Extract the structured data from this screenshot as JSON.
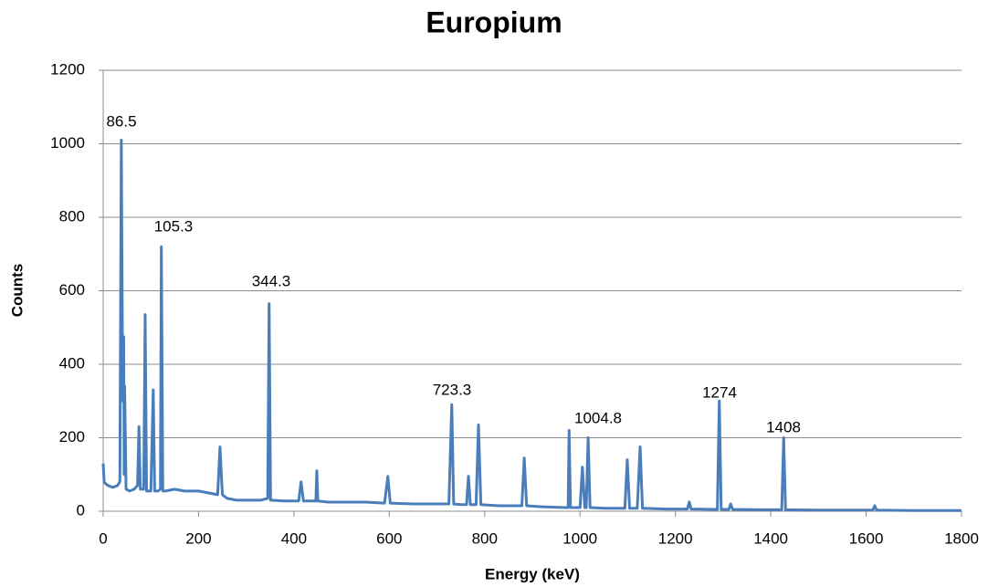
{
  "chart_data": {
    "type": "line",
    "title": "Europium",
    "x_label": "Energy (keV)",
    "y_label": "Counts",
    "xlim": [
      0,
      1800
    ],
    "xticks": [
      0,
      200,
      400,
      600,
      800,
      1000,
      1200,
      1400,
      1600,
      1800
    ],
    "ylim": [
      0,
      1200
    ],
    "yticks": [
      0,
      200,
      400,
      600,
      800,
      1000,
      1200
    ],
    "grid": true,
    "annotations": [
      "86.5",
      "105.3",
      "344.3",
      "723.3",
      "1004.8",
      "1274",
      "1408"
    ],
    "x": [
      0,
      2,
      5,
      10,
      20,
      30,
      35,
      38,
      41,
      43,
      44,
      45,
      48,
      55,
      65,
      72,
      75,
      78,
      85,
      88,
      91,
      100,
      105,
      108,
      115,
      120,
      122,
      125,
      130,
      150,
      170,
      200,
      220,
      240,
      245,
      247,
      250,
      260,
      280,
      300,
      330,
      345,
      348,
      351,
      380,
      410,
      415,
      420,
      440,
      446,
      448,
      450,
      470,
      500,
      550,
      590,
      597,
      602,
      650,
      700,
      725,
      731,
      735,
      750,
      762,
      766,
      770,
      782,
      787,
      792,
      830,
      870,
      878,
      883,
      888,
      920,
      970,
      975,
      977,
      980,
      1000,
      1005,
      1010,
      1013,
      1017,
      1021,
      1050,
      1094,
      1099,
      1104,
      1120,
      1126,
      1131,
      1180,
      1225,
      1229,
      1233,
      1280,
      1288,
      1292,
      1296,
      1312,
      1316,
      1320,
      1380,
      1423,
      1427,
      1431,
      1500,
      1614,
      1618,
      1622,
      1700,
      1800
    ],
    "series": [
      {
        "name": "Counts",
        "color": "#4a7ebb",
        "values": [
          130,
          80,
          75,
          70,
          65,
          70,
          80,
          1010,
          300,
          475,
          100,
          340,
          60,
          55,
          60,
          70,
          230,
          60,
          60,
          535,
          55,
          55,
          330,
          55,
          55,
          60,
          720,
          55,
          55,
          60,
          55,
          55,
          50,
          45,
          175,
          120,
          45,
          35,
          30,
          30,
          30,
          35,
          565,
          30,
          28,
          28,
          80,
          28,
          28,
          28,
          110,
          28,
          25,
          25,
          25,
          22,
          95,
          22,
          20,
          20,
          20,
          290,
          20,
          18,
          18,
          95,
          18,
          18,
          235,
          18,
          15,
          15,
          15,
          145,
          15,
          12,
          10,
          10,
          220,
          10,
          10,
          120,
          10,
          10,
          200,
          10,
          8,
          8,
          140,
          8,
          8,
          175,
          8,
          6,
          6,
          25,
          6,
          5,
          5,
          300,
          5,
          5,
          20,
          5,
          4,
          4,
          200,
          4,
          3,
          3,
          15,
          3,
          2,
          2
        ]
      }
    ]
  }
}
